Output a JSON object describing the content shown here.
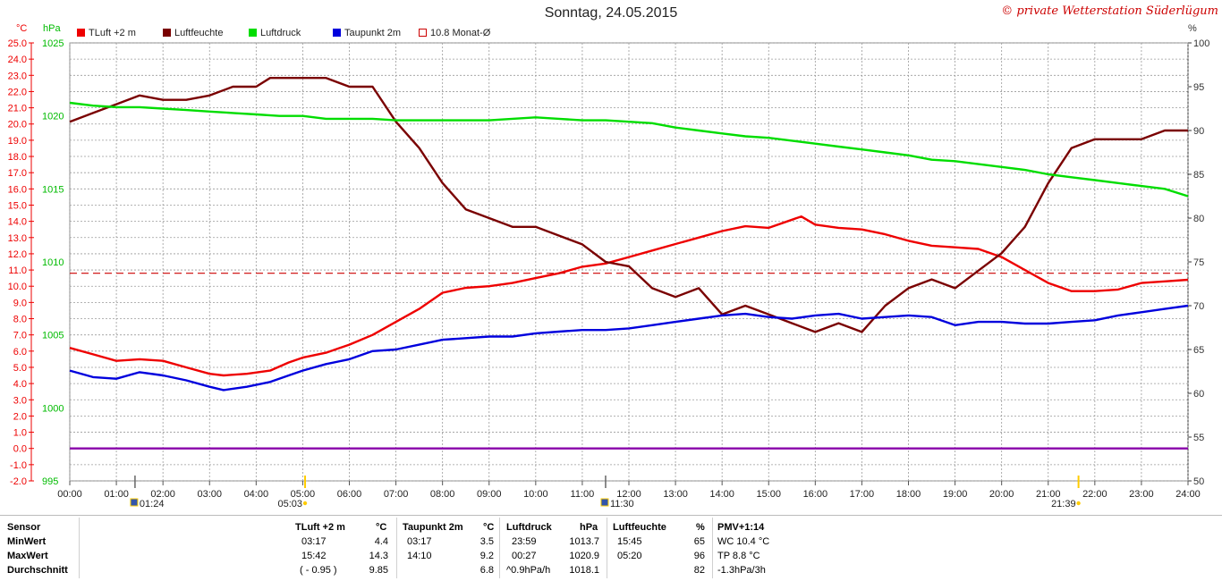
{
  "header": {
    "title": "Sonntag, 24.05.2015",
    "credit": "© private Wetterstation Süderlügum"
  },
  "legend": [
    {
      "label": "TLuft +2 m",
      "color": "#ee0000",
      "filled": true
    },
    {
      "label": "Luftfeuchte",
      "color": "#7a0000",
      "filled": true
    },
    {
      "label": "Luftdruck",
      "color": "#00dd00",
      "filled": true
    },
    {
      "label": "Taupunkt 2m",
      "color": "#0000dd",
      "filled": true
    },
    {
      "label": "10.8 Monat-Ø",
      "color": "#cc0000",
      "filled": false
    }
  ],
  "axes": {
    "left_unit_temp": "°C",
    "left_unit_pressure": "hPa",
    "right_unit": "%",
    "temp_ticks": [
      "25.0",
      "24.0",
      "23.0",
      "22.0",
      "21.0",
      "20.0",
      "19.0",
      "18.0",
      "17.0",
      "16.0",
      "15.0",
      "14.0",
      "13.0",
      "12.0",
      "11.0",
      "10.0",
      "9.0",
      "8.0",
      "7.0",
      "6.0",
      "5.0",
      "4.0",
      "3.0",
      "2.0",
      "1.0",
      "0.0",
      "-1.0",
      "-2.0"
    ],
    "pressure_ticks": [
      "1025",
      "1020",
      "1015",
      "1010",
      "1005",
      "1000",
      "995"
    ],
    "humidity_ticks": [
      "100",
      "95",
      "90",
      "85",
      "80",
      "75",
      "70",
      "65",
      "60",
      "55",
      "50"
    ],
    "time_ticks": [
      "00:00",
      "01:00",
      "02:00",
      "03:00",
      "04:00",
      "05:00",
      "06:00",
      "07:00",
      "08:00",
      "09:00",
      "10:00",
      "11:00",
      "12:00",
      "13:00",
      "14:00",
      "15:00",
      "16:00",
      "17:00",
      "18:00",
      "19:00",
      "20:00",
      "21:00",
      "22:00",
      "23:00",
      "24:00"
    ]
  },
  "markers": {
    "moonrise": "01:24",
    "sunrise": "05:03",
    "moonset": "11:30",
    "sunset": "21:39"
  },
  "chart_data": {
    "type": "line",
    "x_unit": "hours",
    "xlim": [
      0,
      24
    ],
    "axes": {
      "temperature": {
        "unit": "°C",
        "range": [
          -2,
          25
        ]
      },
      "pressure": {
        "unit": "hPa",
        "range": [
          995,
          1025
        ]
      },
      "humidity": {
        "unit": "%",
        "range": [
          50,
          100
        ]
      }
    },
    "grid": true,
    "series": [
      {
        "name": "TLuft +2 m",
        "axis": "temperature",
        "color": "#ee0000",
        "points": [
          [
            0,
            6.2
          ],
          [
            0.5,
            5.8
          ],
          [
            1,
            5.4
          ],
          [
            1.5,
            5.5
          ],
          [
            2,
            5.4
          ],
          [
            2.5,
            5.0
          ],
          [
            3,
            4.6
          ],
          [
            3.3,
            4.5
          ],
          [
            3.8,
            4.6
          ],
          [
            4.3,
            4.8
          ],
          [
            4.7,
            5.3
          ],
          [
            5,
            5.6
          ],
          [
            5.5,
            5.9
          ],
          [
            6,
            6.4
          ],
          [
            6.5,
            7.0
          ],
          [
            7,
            7.8
          ],
          [
            7.5,
            8.6
          ],
          [
            8,
            9.6
          ],
          [
            8.5,
            9.9
          ],
          [
            9,
            10.0
          ],
          [
            9.5,
            10.2
          ],
          [
            10,
            10.5
          ],
          [
            10.5,
            10.8
          ],
          [
            11,
            11.2
          ],
          [
            11.5,
            11.4
          ],
          [
            12,
            11.8
          ],
          [
            12.5,
            12.2
          ],
          [
            13,
            12.6
          ],
          [
            13.5,
            13.0
          ],
          [
            14,
            13.4
          ],
          [
            14.5,
            13.7
          ],
          [
            15,
            13.6
          ],
          [
            15.7,
            14.3
          ],
          [
            16,
            13.8
          ],
          [
            16.5,
            13.6
          ],
          [
            17,
            13.5
          ],
          [
            17.5,
            13.2
          ],
          [
            18,
            12.8
          ],
          [
            18.5,
            12.5
          ],
          [
            19,
            12.4
          ],
          [
            19.5,
            12.3
          ],
          [
            20,
            11.8
          ],
          [
            20.5,
            11.0
          ],
          [
            21,
            10.2
          ],
          [
            21.5,
            9.7
          ],
          [
            22,
            9.7
          ],
          [
            22.5,
            9.8
          ],
          [
            23,
            10.2
          ],
          [
            23.5,
            10.3
          ],
          [
            24,
            10.4
          ]
        ]
      },
      {
        "name": "Luftfeuchte",
        "axis": "humidity",
        "color": "#7a0000",
        "points": [
          [
            0,
            91
          ],
          [
            0.5,
            92
          ],
          [
            1,
            93
          ],
          [
            1.5,
            94
          ],
          [
            2,
            93.5
          ],
          [
            2.5,
            93.5
          ],
          [
            3,
            94
          ],
          [
            3.5,
            95
          ],
          [
            4,
            95
          ],
          [
            4.3,
            96
          ],
          [
            4.7,
            96
          ],
          [
            5,
            96
          ],
          [
            5.5,
            96
          ],
          [
            6,
            95
          ],
          [
            6.5,
            95
          ],
          [
            7,
            91
          ],
          [
            7.5,
            88
          ],
          [
            8,
            84
          ],
          [
            8.5,
            81
          ],
          [
            9,
            80
          ],
          [
            9.5,
            79
          ],
          [
            10,
            79
          ],
          [
            10.5,
            78
          ],
          [
            11,
            77
          ],
          [
            11.5,
            75
          ],
          [
            12,
            74.5
          ],
          [
            12.5,
            72
          ],
          [
            13,
            71
          ],
          [
            13.5,
            72
          ],
          [
            14,
            69
          ],
          [
            14.5,
            70
          ],
          [
            15,
            69
          ],
          [
            15.5,
            68
          ],
          [
            16,
            67
          ],
          [
            16.5,
            68
          ],
          [
            17,
            67
          ],
          [
            17.5,
            70
          ],
          [
            18,
            72
          ],
          [
            18.5,
            73
          ],
          [
            19,
            72
          ],
          [
            19.5,
            74
          ],
          [
            20,
            76
          ],
          [
            20.5,
            79
          ],
          [
            21,
            84
          ],
          [
            21.5,
            88
          ],
          [
            22,
            89
          ],
          [
            22.5,
            89
          ],
          [
            23,
            89
          ],
          [
            23.5,
            90
          ],
          [
            24,
            90
          ]
        ]
      },
      {
        "name": "Luftdruck",
        "axis": "pressure",
        "color": "#00dd00",
        "points": [
          [
            0,
            1020.9
          ],
          [
            0.5,
            1020.7
          ],
          [
            1,
            1020.6
          ],
          [
            1.5,
            1020.6
          ],
          [
            2,
            1020.5
          ],
          [
            2.5,
            1020.4
          ],
          [
            3,
            1020.3
          ],
          [
            3.5,
            1020.2
          ],
          [
            4,
            1020.1
          ],
          [
            4.5,
            1020.0
          ],
          [
            5,
            1020.0
          ],
          [
            5.5,
            1019.8
          ],
          [
            6,
            1019.8
          ],
          [
            6.5,
            1019.8
          ],
          [
            7,
            1019.7
          ],
          [
            7.5,
            1019.7
          ],
          [
            8,
            1019.7
          ],
          [
            8.5,
            1019.7
          ],
          [
            9,
            1019.7
          ],
          [
            9.5,
            1019.8
          ],
          [
            10,
            1019.9
          ],
          [
            10.5,
            1019.8
          ],
          [
            11,
            1019.7
          ],
          [
            11.5,
            1019.7
          ],
          [
            12,
            1019.6
          ],
          [
            12.5,
            1019.5
          ],
          [
            13,
            1019.2
          ],
          [
            13.5,
            1019.0
          ],
          [
            14,
            1018.8
          ],
          [
            14.5,
            1018.6
          ],
          [
            15,
            1018.5
          ],
          [
            15.5,
            1018.3
          ],
          [
            16,
            1018.1
          ],
          [
            16.5,
            1017.9
          ],
          [
            17,
            1017.7
          ],
          [
            17.5,
            1017.5
          ],
          [
            18,
            1017.3
          ],
          [
            18.5,
            1017.0
          ],
          [
            19,
            1016.9
          ],
          [
            19.5,
            1016.7
          ],
          [
            20,
            1016.5
          ],
          [
            20.5,
            1016.3
          ],
          [
            21,
            1016.0
          ],
          [
            21.5,
            1015.8
          ],
          [
            22,
            1015.6
          ],
          [
            22.5,
            1015.4
          ],
          [
            23,
            1015.2
          ],
          [
            23.5,
            1015.0
          ],
          [
            24,
            1014.5
          ]
        ]
      },
      {
        "name": "Taupunkt 2m",
        "axis": "temperature",
        "color": "#0000dd",
        "points": [
          [
            0,
            4.8
          ],
          [
            0.5,
            4.4
          ],
          [
            1,
            4.3
          ],
          [
            1.5,
            4.7
          ],
          [
            2,
            4.5
          ],
          [
            2.5,
            4.2
          ],
          [
            3,
            3.8
          ],
          [
            3.3,
            3.6
          ],
          [
            3.8,
            3.8
          ],
          [
            4.3,
            4.1
          ],
          [
            4.7,
            4.5
          ],
          [
            5,
            4.8
          ],
          [
            5.5,
            5.2
          ],
          [
            6,
            5.5
          ],
          [
            6.5,
            6.0
          ],
          [
            7,
            6.1
          ],
          [
            7.5,
            6.4
          ],
          [
            8,
            6.7
          ],
          [
            8.5,
            6.8
          ],
          [
            9,
            6.9
          ],
          [
            9.5,
            6.9
          ],
          [
            10,
            7.1
          ],
          [
            10.5,
            7.2
          ],
          [
            11,
            7.3
          ],
          [
            11.5,
            7.3
          ],
          [
            12,
            7.4
          ],
          [
            12.5,
            7.6
          ],
          [
            13,
            7.8
          ],
          [
            13.5,
            8.0
          ],
          [
            14,
            8.2
          ],
          [
            14.5,
            8.3
          ],
          [
            15,
            8.1
          ],
          [
            15.5,
            8.0
          ],
          [
            16,
            8.2
          ],
          [
            16.5,
            8.3
          ],
          [
            17,
            8.0
          ],
          [
            17.5,
            8.1
          ],
          [
            18,
            8.2
          ],
          [
            18.5,
            8.1
          ],
          [
            19,
            7.6
          ],
          [
            19.5,
            7.8
          ],
          [
            20,
            7.8
          ],
          [
            20.5,
            7.7
          ],
          [
            21,
            7.7
          ],
          [
            21.5,
            7.8
          ],
          [
            22,
            7.9
          ],
          [
            22.5,
            8.2
          ],
          [
            23,
            8.4
          ],
          [
            23.5,
            8.6
          ],
          [
            24,
            8.8
          ]
        ]
      },
      {
        "name": "10.8 Monat-Ø",
        "axis": "temperature",
        "color": "#cc0000",
        "style": "dashed",
        "points": [
          [
            0,
            10.8
          ],
          [
            24,
            10.8
          ]
        ]
      },
      {
        "name": "",
        "axis": "temperature",
        "color": "#8800aa",
        "points": [
          [
            0,
            0
          ],
          [
            24,
            0
          ]
        ]
      }
    ]
  },
  "stats": {
    "rows": [
      "Sensor",
      "MinWert",
      "MaxWert",
      "Durchschnitt"
    ],
    "temp": {
      "head": "TLuft +2 m",
      "unit": "°C",
      "min_time": "03:17",
      "min": "4.4",
      "max_time": "15:42",
      "max": "14.3",
      "avg_note": "( - 0.95 )",
      "avg": "9.85"
    },
    "dew": {
      "head": "Taupunkt 2m",
      "unit": "°C",
      "min_time": "03:17",
      "min": "3.5",
      "max_time": "14:10",
      "max": "9.2",
      "avg": "6.8"
    },
    "pressure": {
      "head": "Luftdruck",
      "unit": "hPa",
      "min_time": "23:59",
      "min": "1013.7",
      "max_time": "00:27",
      "max": "1020.9",
      "avg_note": "^0.9hPa/h",
      "avg": "1018.1"
    },
    "humidity": {
      "head": "Luftfeuchte",
      "unit": "%",
      "min_time": "15:45",
      "min": "65",
      "max_time": "05:20",
      "max": "96",
      "avg": "82"
    },
    "pmv": {
      "head": "PMV+1:14",
      "wc": "WC 10.4 °C",
      "tp": "TP 8.8 °C",
      "trend": "-1.3hPa/3h"
    }
  }
}
